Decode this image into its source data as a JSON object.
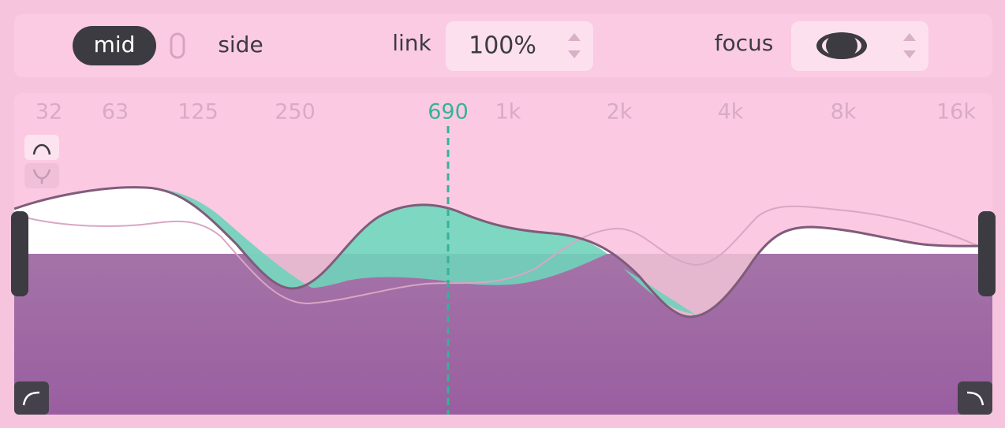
{
  "header": {
    "mode": {
      "mid": "mid",
      "side": "side"
    },
    "link": {
      "label": "link",
      "value": "100%"
    },
    "focus": {
      "label": "focus"
    }
  },
  "spectrum": {
    "frequency_labels": [
      "32",
      "63",
      "125",
      "250",
      "1k",
      "2k",
      "4k",
      "8k",
      "16k"
    ],
    "cursor_label": "690"
  }
}
